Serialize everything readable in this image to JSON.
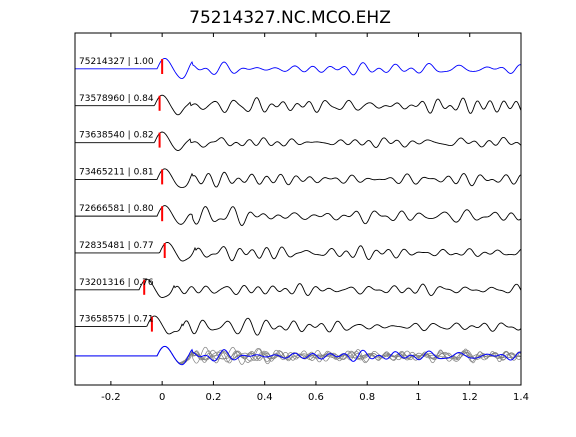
{
  "chart_data": {
    "type": "line",
    "title": "75214327.NC.MCO.EHZ",
    "xlabel": "",
    "ylabel": "",
    "xlim": [
      -0.34,
      1.4
    ],
    "x_ticks": [
      "-0.2",
      "0",
      "0.2",
      "0.4",
      "0.6",
      "0.8",
      "1",
      "1.2",
      "1.4"
    ],
    "x_tick_values": [
      -0.2,
      0,
      0.2,
      0.4,
      0.6,
      0.8,
      1.0,
      1.2,
      1.4
    ],
    "grid": false,
    "traces": [
      {
        "label": "75214327 | 1.00",
        "event_id": "75214327",
        "correlation": 1.0,
        "pick_time": 0.0,
        "color": "#0000ff"
      },
      {
        "label": "73578960 | 0.84",
        "event_id": "73578960",
        "correlation": 0.84,
        "pick_time": -0.01,
        "color": "#000000"
      },
      {
        "label": "73638540 | 0.82",
        "event_id": "73638540",
        "correlation": 0.82,
        "pick_time": -0.01,
        "color": "#000000"
      },
      {
        "label": "73465211 | 0.81",
        "event_id": "73465211",
        "correlation": 0.81,
        "pick_time": 0.0,
        "color": "#000000"
      },
      {
        "label": "72666581 | 0.80",
        "event_id": "72666581",
        "correlation": 0.8,
        "pick_time": 0.0,
        "color": "#000000"
      },
      {
        "label": "72835481 | 0.77",
        "event_id": "72835481",
        "correlation": 0.77,
        "pick_time": 0.01,
        "color": "#000000"
      },
      {
        "label": "73201316 | 0.76",
        "event_id": "73201316",
        "correlation": 0.76,
        "pick_time": -0.07,
        "color": "#000000"
      },
      {
        "label": "73658575 | 0.71",
        "event_id": "73658575",
        "correlation": 0.71,
        "pick_time": -0.04,
        "color": "#000000"
      }
    ],
    "stack_color_master": "#0000ff",
    "stack_color_others": "#808080",
    "pick_color": "#ff0000"
  }
}
